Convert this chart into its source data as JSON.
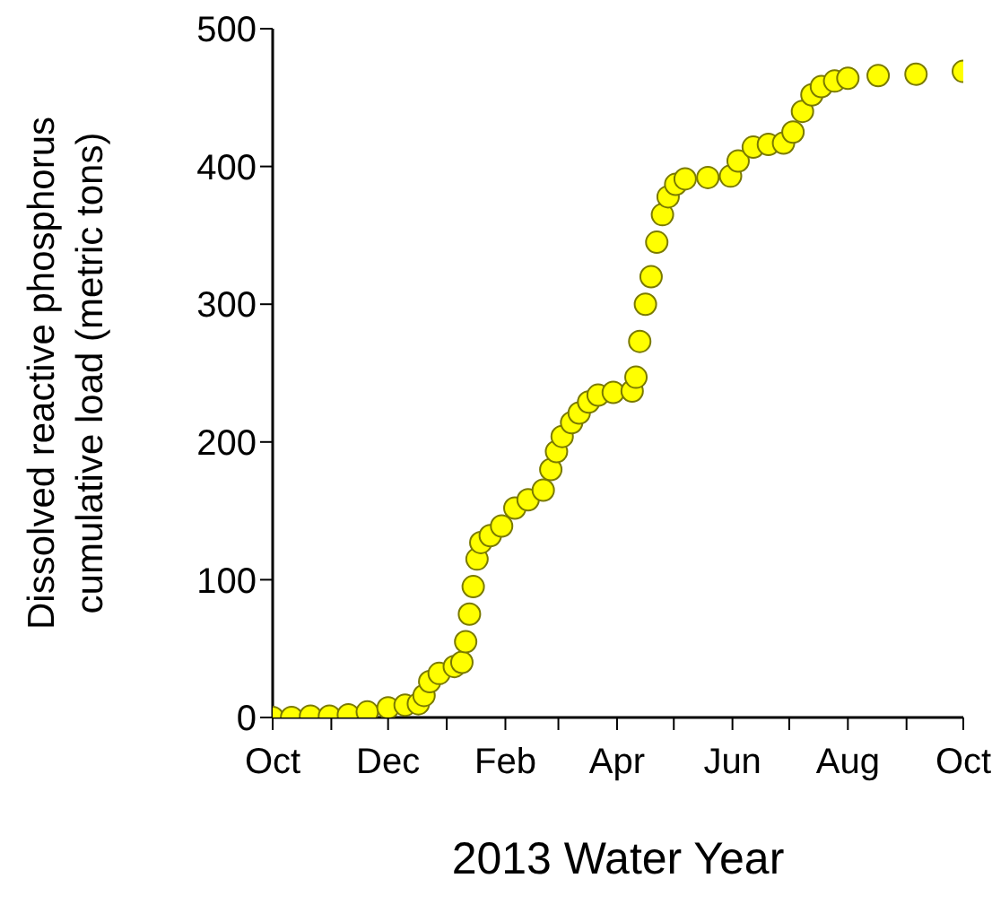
{
  "chart_data": {
    "type": "scatter",
    "xlabel": "2013 Water Year",
    "ylabel": "Dissolved reactive phosphorus\ncumulative load (metric tons)",
    "x": [
      "2012-10-01",
      "2012-10-11",
      "2012-10-21",
      "2012-10-31",
      "2012-11-10",
      "2012-11-20",
      "2012-12-01",
      "2012-12-10",
      "2012-12-17",
      "2012-12-20",
      "2012-12-23",
      "2012-12-28",
      "2013-01-05",
      "2013-01-09",
      "2013-01-11",
      "2013-01-13",
      "2013-01-15",
      "2013-01-17",
      "2013-01-19",
      "2013-01-24",
      "2013-01-30",
      "2013-02-06",
      "2013-02-13",
      "2013-02-21",
      "2013-02-25",
      "2013-02-28",
      "2013-03-03",
      "2013-03-08",
      "2013-03-12",
      "2013-03-17",
      "2013-03-22",
      "2013-03-30",
      "2013-04-09",
      "2013-04-11",
      "2013-04-13",
      "2013-04-16",
      "2013-04-19",
      "2013-04-22",
      "2013-04-25",
      "2013-04-28",
      "2013-05-02",
      "2013-05-07",
      "2013-05-19",
      "2013-05-31",
      "2013-06-04",
      "2013-06-12",
      "2013-06-20",
      "2013-06-28",
      "2013-07-03",
      "2013-07-08",
      "2013-07-13",
      "2013-07-18",
      "2013-07-25",
      "2013-08-01",
      "2013-08-17",
      "2013-09-06",
      "2013-10-01"
    ],
    "series": [
      {
        "color": "#ffff00",
        "values": [
          0,
          0,
          1,
          1,
          2,
          4,
          7,
          9,
          10,
          16,
          26,
          32,
          37,
          40,
          55,
          75,
          95,
          115,
          127,
          132,
          139,
          152,
          158,
          165,
          180,
          193,
          204,
          214,
          221,
          229,
          234,
          236,
          237,
          247,
          273,
          300,
          320,
          345,
          365,
          378,
          387,
          391,
          392,
          393,
          404,
          414,
          416,
          417,
          425,
          440,
          452,
          458,
          462,
          464,
          466,
          467,
          469
        ]
      }
    ],
    "xlim": [
      "2012-10-01",
      "2013-10-01"
    ],
    "xticks": [
      {
        "value": "2012-10-01",
        "label": "Oct"
      },
      {
        "value": "2012-11-01",
        "label": null
      },
      {
        "value": "2012-12-01",
        "label": "Dec"
      },
      {
        "value": "2013-01-01",
        "label": null
      },
      {
        "value": "2013-02-01",
        "label": "Feb"
      },
      {
        "value": "2013-03-01",
        "label": null
      },
      {
        "value": "2013-04-01",
        "label": "Apr"
      },
      {
        "value": "2013-05-01",
        "label": null
      },
      {
        "value": "2013-06-01",
        "label": "Jun"
      },
      {
        "value": "2013-07-01",
        "label": null
      },
      {
        "value": "2013-08-01",
        "label": "Aug"
      },
      {
        "value": "2013-09-01",
        "label": null
      },
      {
        "value": "2013-10-01",
        "label": "Oct"
      }
    ],
    "ylim": [
      0,
      500
    ],
    "yticks": [
      0,
      100,
      200,
      300,
      400,
      500
    ],
    "marker": "circle"
  }
}
